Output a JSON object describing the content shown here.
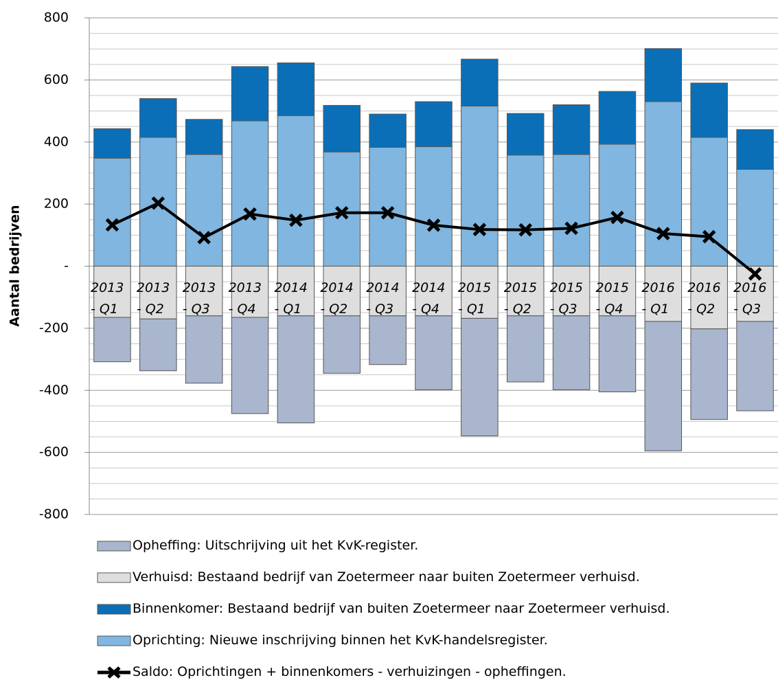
{
  "chart_data": {
    "type": "bar",
    "y_label": "Aantal bedrijven",
    "categories": [
      "2013 - Q1",
      "2013 - Q2",
      "2013 - Q3",
      "2013 - Q4",
      "2014 - Q1",
      "2014 - Q2",
      "2014 - Q3",
      "2014 - Q4",
      "2015 - Q1",
      "2015 - Q2",
      "2015 - Q3",
      "2015 - Q4",
      "2016 - Q1",
      "2016 - Q2",
      "2016 - Q3"
    ],
    "series": [
      {
        "name": "Opheffing: Uitschrijving uit het KvK-register.",
        "type": "bar",
        "color": "#a9b6ce",
        "values": [
          -143,
          -167,
          -217,
          -310,
          -345,
          -185,
          -157,
          -238,
          -379,
          -213,
          -238,
          -245,
          -417,
          -292,
          -288
        ]
      },
      {
        "name": "Verhuisd: Bestaand bedrijf van Zoetermeer naar buiten Zoetermeer verhuisd.",
        "type": "bar",
        "color": "#dedede",
        "values": [
          -165,
          -170,
          -160,
          -165,
          -160,
          -160,
          -160,
          -160,
          -168,
          -160,
          -160,
          -160,
          -178,
          -202,
          -178
        ]
      },
      {
        "name": "Binnenkomer: Bestaand bedrijf van buiten Zoetermeer naar Zoetermeer verhuisd.",
        "type": "bar",
        "color": "#0b6fb8",
        "values": [
          95,
          125,
          113,
          175,
          170,
          150,
          107,
          145,
          151,
          134,
          160,
          170,
          171,
          175,
          128
        ]
      },
      {
        "name": "Oprichting: Nieuwe inschrijving binnen het KvK-handelsregister.",
        "type": "bar",
        "color": "#80b6df",
        "values": [
          348,
          415,
          360,
          468,
          485,
          368,
          383,
          385,
          516,
          358,
          360,
          393,
          530,
          415,
          312
        ]
      },
      {
        "name": "Saldo: Oprichtingen + binnenkomers - verhuizingen - opheffingen.",
        "type": "line",
        "color": "#000000",
        "values": [
          133,
          203,
          92,
          168,
          148,
          172,
          172,
          132,
          118,
          117,
          122,
          157,
          105,
          95,
          -25
        ]
      }
    ],
    "ylim": [
      -800,
      800
    ],
    "yticks": [
      -800,
      -600,
      -400,
      -200,
      {
        "value": 0,
        "label": "-"
      },
      200,
      400,
      600,
      800
    ],
    "grid": true
  }
}
